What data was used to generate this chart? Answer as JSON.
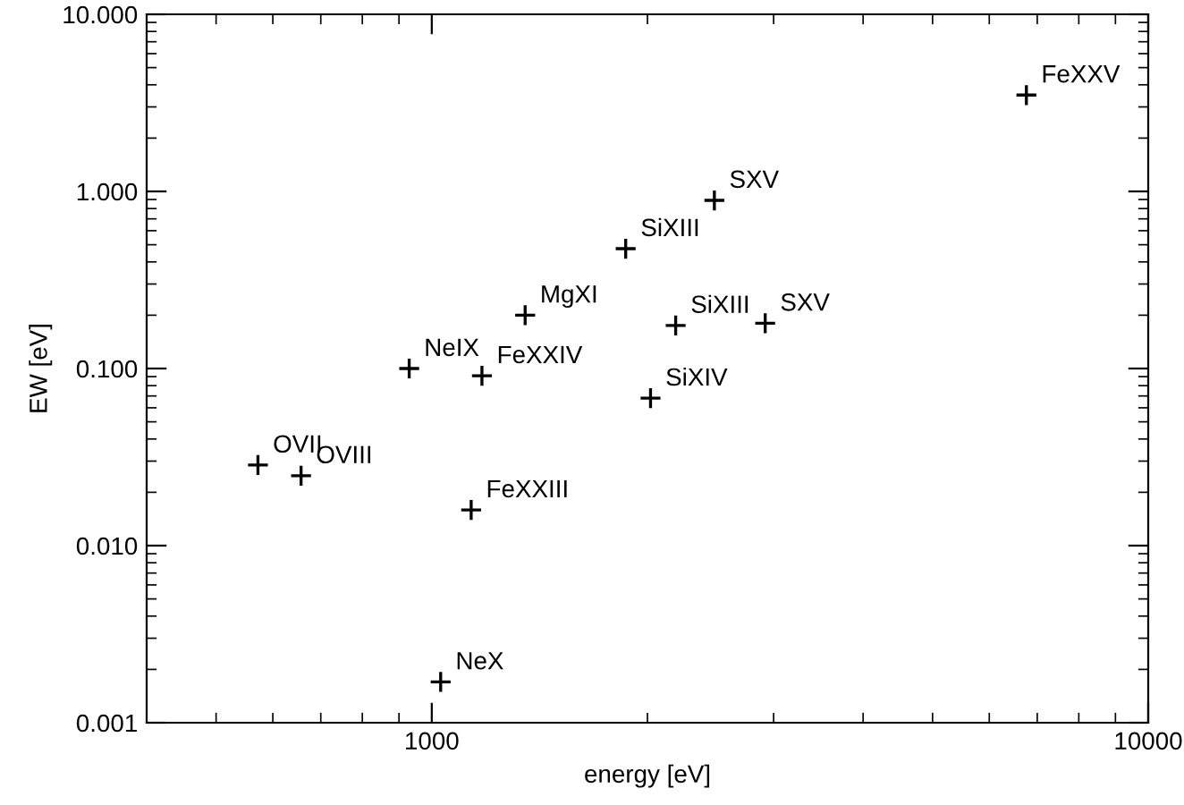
{
  "chart_data": {
    "type": "scatter",
    "xlabel": "energy [eV]",
    "ylabel": "EW [eV]",
    "log": "xy",
    "marker": "cross",
    "grid": false,
    "x": [
      6760,
      2480,
      1865,
      1350,
      2190,
      2920,
      930,
      1175,
      2020,
      572,
      657,
      1135,
      1029
    ],
    "values": [
      3.5,
      0.89,
      0.475,
      0.2,
      0.175,
      0.18,
      0.1,
      0.091,
      0.068,
      0.0285,
      0.0248,
      0.0159,
      0.0017
    ],
    "color": "#000000",
    "xlim": [
      400,
      10000
    ],
    "ylim": [
      0.001,
      10
    ],
    "xticks": [
      1000,
      10000
    ],
    "yticks": [
      {
        "value": 0.001,
        "label": "0.001"
      },
      {
        "value": 0.01,
        "label": "0.010"
      },
      {
        "value": 0.1,
        "label": "0.100"
      },
      {
        "value": 1,
        "label": "1.000"
      },
      {
        "value": 10,
        "label": "10.000"
      }
    ],
    "annotations": [
      {
        "text": "FeXXV",
        "x": 6760,
        "y": 3.5
      },
      {
        "text": "SXV",
        "x": 2480,
        "y": 0.89
      },
      {
        "text": "SiXIII",
        "x": 1865,
        "y": 0.475
      },
      {
        "text": "MgXI",
        "x": 1350,
        "y": 0.2
      },
      {
        "text": "SiXIII",
        "x": 2190,
        "y": 0.175
      },
      {
        "text": "SXV",
        "x": 2920,
        "y": 0.18
      },
      {
        "text": "NeIX",
        "x": 930,
        "y": 0.1
      },
      {
        "text": "FeXXIV",
        "x": 1175,
        "y": 0.091
      },
      {
        "text": "SiXIV",
        "x": 2020,
        "y": 0.068
      },
      {
        "text": "OVII",
        "x": 572,
        "y": 0.0285
      },
      {
        "text": "OVIII",
        "x": 657,
        "y": 0.0248
      },
      {
        "text": "FeXXIII",
        "x": 1135,
        "y": 0.0159
      },
      {
        "text": "NeX",
        "x": 1029,
        "y": 0.0017
      }
    ]
  }
}
